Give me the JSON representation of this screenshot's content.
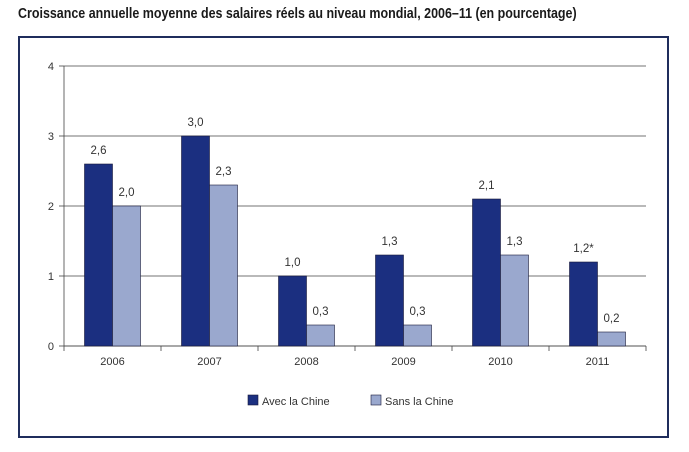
{
  "title": "Croissance annuelle moyenne des salaires réels au niveau mondial, 2006–11 (en pourcentage)",
  "chart_data": {
    "type": "bar",
    "categories": [
      "2006",
      "2007",
      "2008",
      "2009",
      "2010",
      "2011"
    ],
    "series": [
      {
        "name": "Avec la Chine",
        "color": "#1b2f80",
        "values": [
          2.6,
          3.0,
          1.0,
          1.3,
          2.1,
          1.2
        ],
        "labels": [
          "2,6",
          "3,0",
          "1,0",
          "1,3",
          "2,1",
          "1,2*"
        ]
      },
      {
        "name": "Sans la Chine",
        "color": "#9aa8ce",
        "values": [
          2.0,
          2.3,
          0.3,
          0.3,
          1.3,
          0.2
        ],
        "labels": [
          "2,0",
          "2,3",
          "0,3",
          "0,3",
          "1,3",
          "0,2"
        ]
      }
    ],
    "yticks": [
      "0",
      "1",
      "2",
      "3",
      "4"
    ],
    "ylim": [
      0,
      4
    ],
    "grid": true,
    "legend": "bottom-center"
  }
}
